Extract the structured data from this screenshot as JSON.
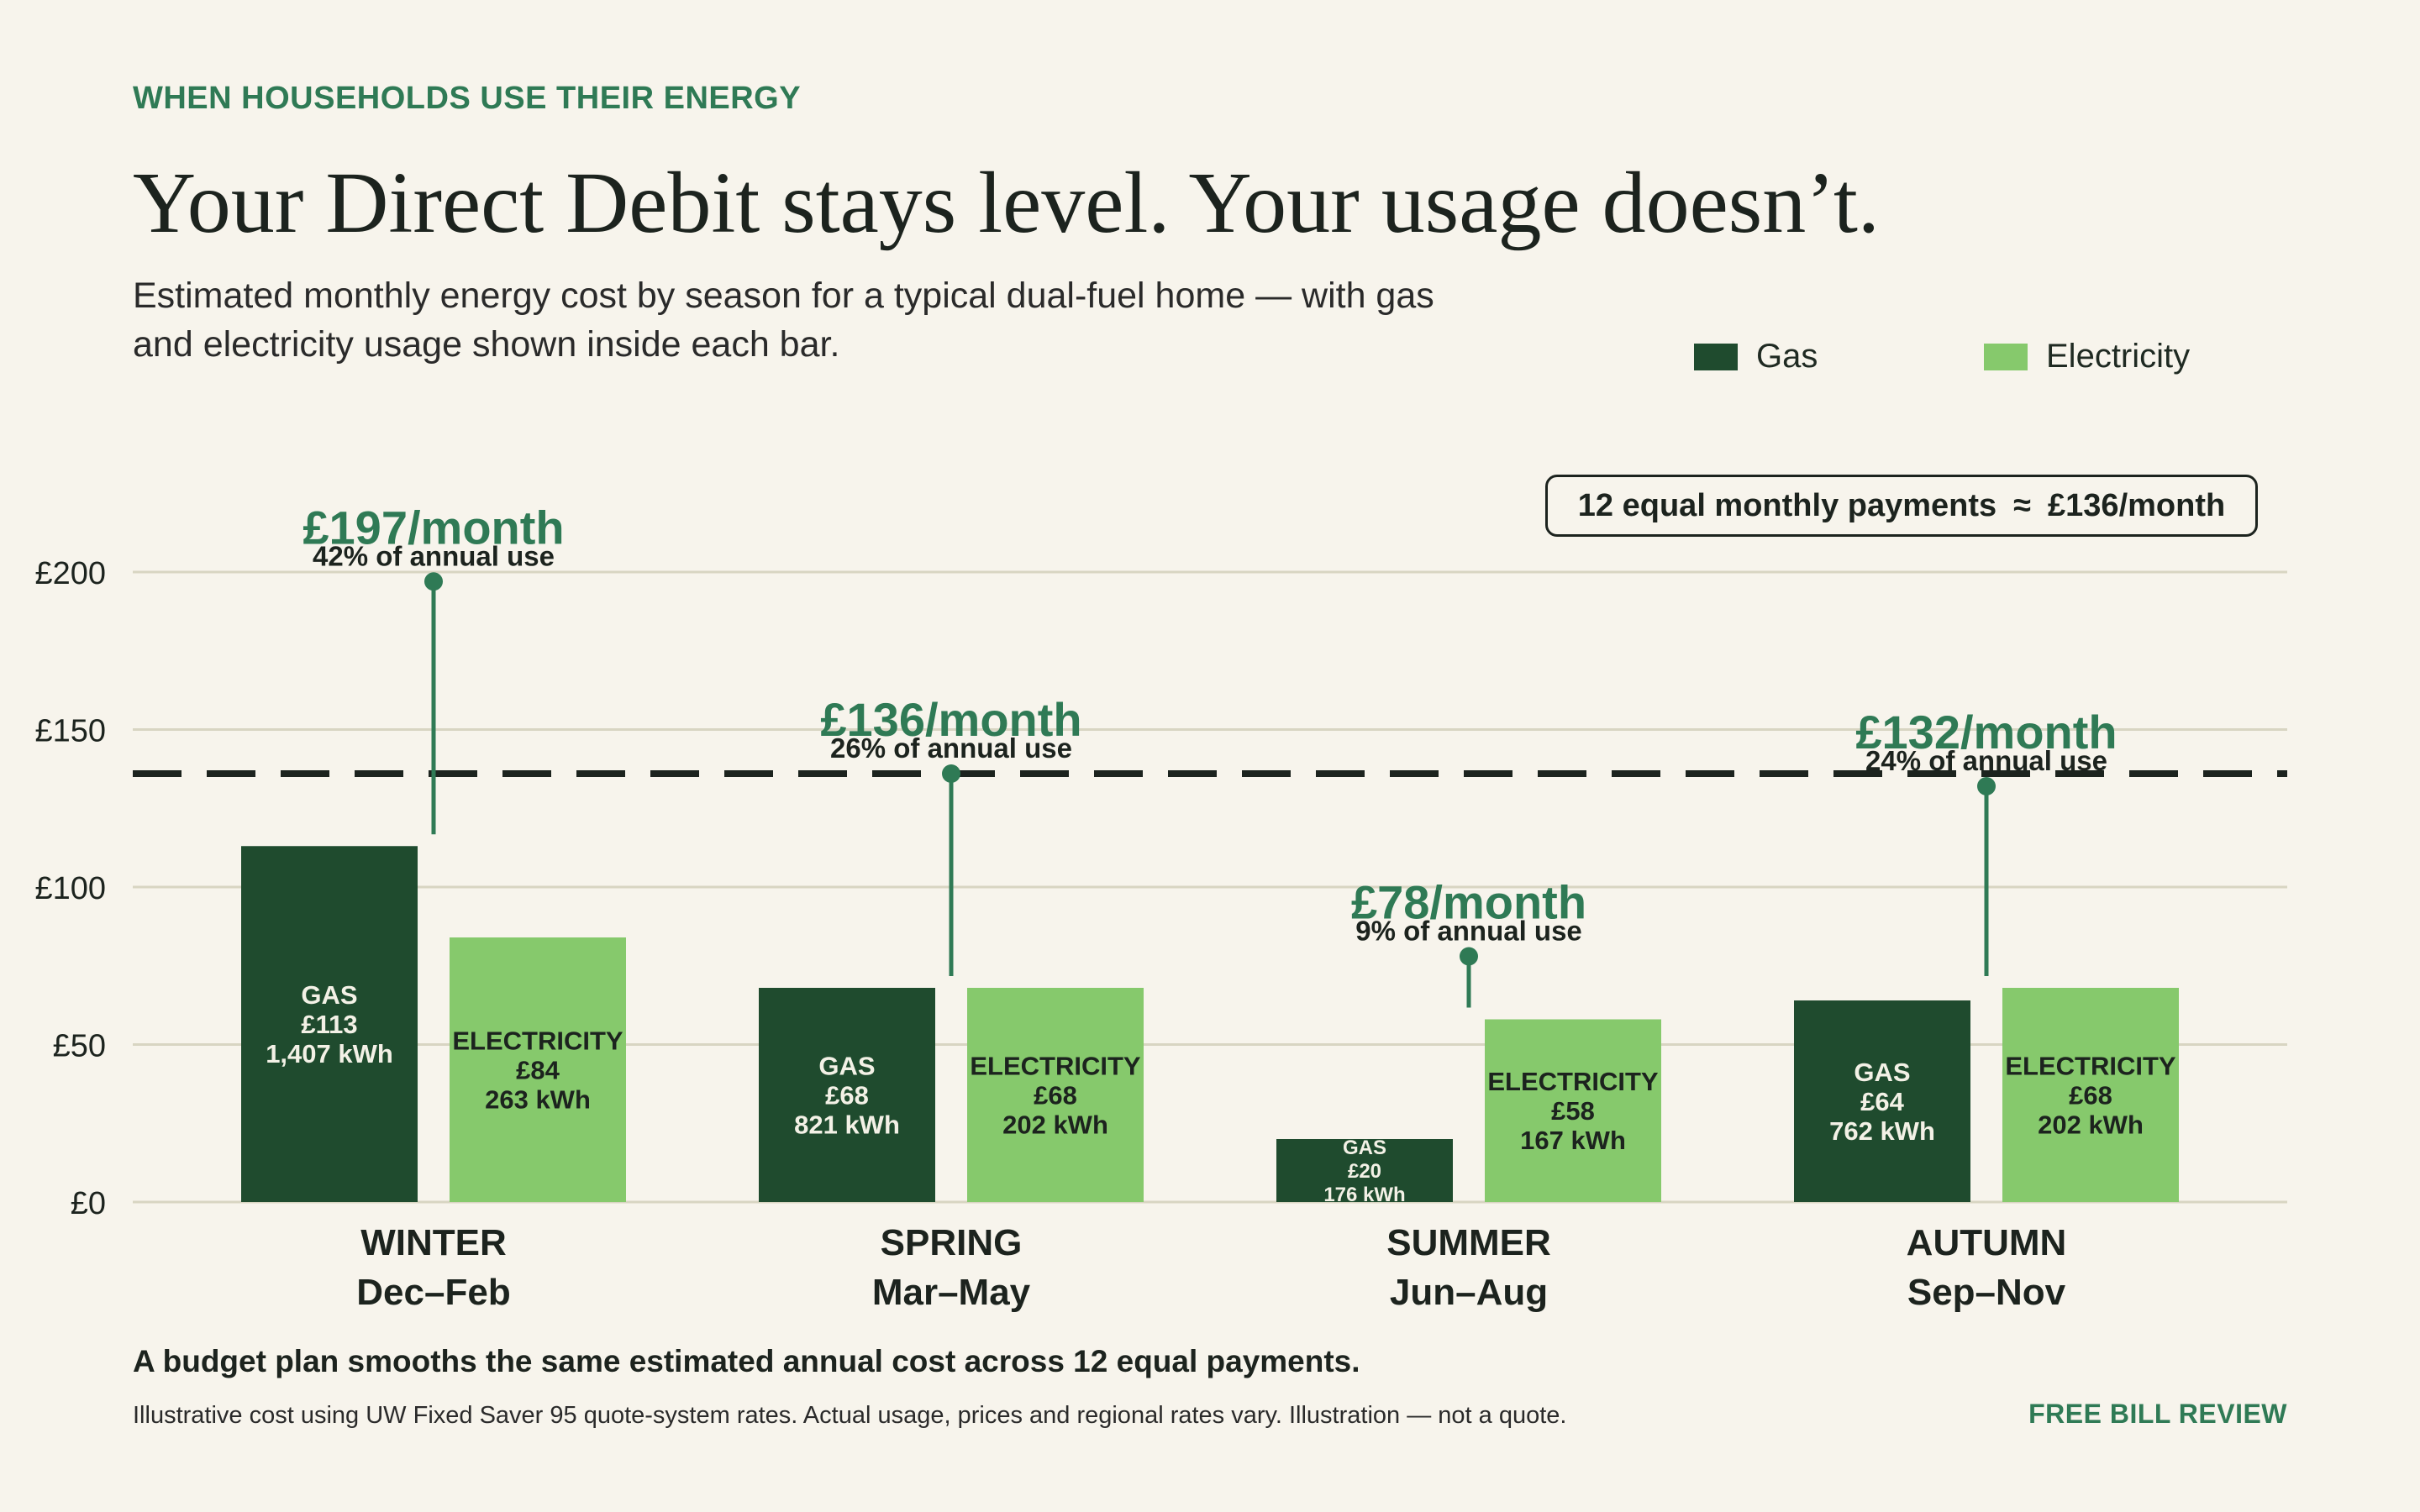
{
  "eyebrow": "WHEN HOUSEHOLDS USE THEIR ENERGY",
  "headline": "Your Direct Debit stays level. Your usage doesn’t.",
  "subtitle": "Estimated monthly energy cost by season for a typical dual-fuel home — with gas and electricity usage shown inside each bar.",
  "callout": {
    "text": "12 equal monthly payments",
    "symbol": "≈",
    "value": "£136/month"
  },
  "footer": {
    "main": "A budget plan smooths the same estimated annual cost across 12 equal payments.",
    "note": "Illustrative cost using UW Fixed Saver 95 quote-system rates. Actual usage, prices and regional rates vary. Illustration — not a quote.",
    "cta": "FREE BILL REVIEW"
  },
  "colors": {
    "gas": "#1f4b2e",
    "electricity": "#86c96c",
    "accent": "#2f7a55",
    "reference": "#1c231e",
    "grid": "#d8d5c2",
    "background": "#f7f4ec"
  },
  "chart_data": {
    "type": "bar",
    "ylim": [
      0,
      200
    ],
    "yticks": [
      0,
      50,
      100,
      150,
      200
    ],
    "ytick_labels": [
      "£0",
      "£50",
      "£100",
      "£150",
      "£200"
    ],
    "grid": true,
    "legend": {
      "placement": "top-right",
      "entries": [
        "Gas",
        "Electricity"
      ]
    },
    "reference_line": {
      "value": 136,
      "style": "dashed"
    },
    "categories": [
      {
        "name": "WINTER",
        "period": "Dec–Feb",
        "total_label": "£197/month",
        "share_label": "42% of annual use",
        "total": 197
      },
      {
        "name": "SPRING",
        "period": "Mar–May",
        "total_label": "£136/month",
        "share_label": "26% of annual use",
        "total": 136
      },
      {
        "name": "SUMMER",
        "period": "Jun–Aug",
        "total_label": "£78/month",
        "share_label": "9% of annual use",
        "total": 78
      },
      {
        "name": "AUTUMN",
        "period": "Sep–Nov",
        "total_label": "£132/month",
        "share_label": "24% of annual use",
        "total": 132
      }
    ],
    "series": [
      {
        "name": "Gas",
        "fuel_label": "GAS",
        "values": [
          113,
          68,
          20,
          64
        ],
        "value_labels": [
          "£113",
          "£68",
          "£20",
          "£64"
        ],
        "usage_labels": [
          "1,407 kWh",
          "821 kWh",
          "176 kWh",
          "762 kWh"
        ]
      },
      {
        "name": "Electricity",
        "fuel_label": "ELECTRICITY",
        "values": [
          84,
          68,
          58,
          68
        ],
        "value_labels": [
          "£84",
          "£68",
          "£58",
          "£68"
        ],
        "usage_labels": [
          "263 kWh",
          "202 kWh",
          "167 kWh",
          "202 kWh"
        ]
      }
    ]
  }
}
